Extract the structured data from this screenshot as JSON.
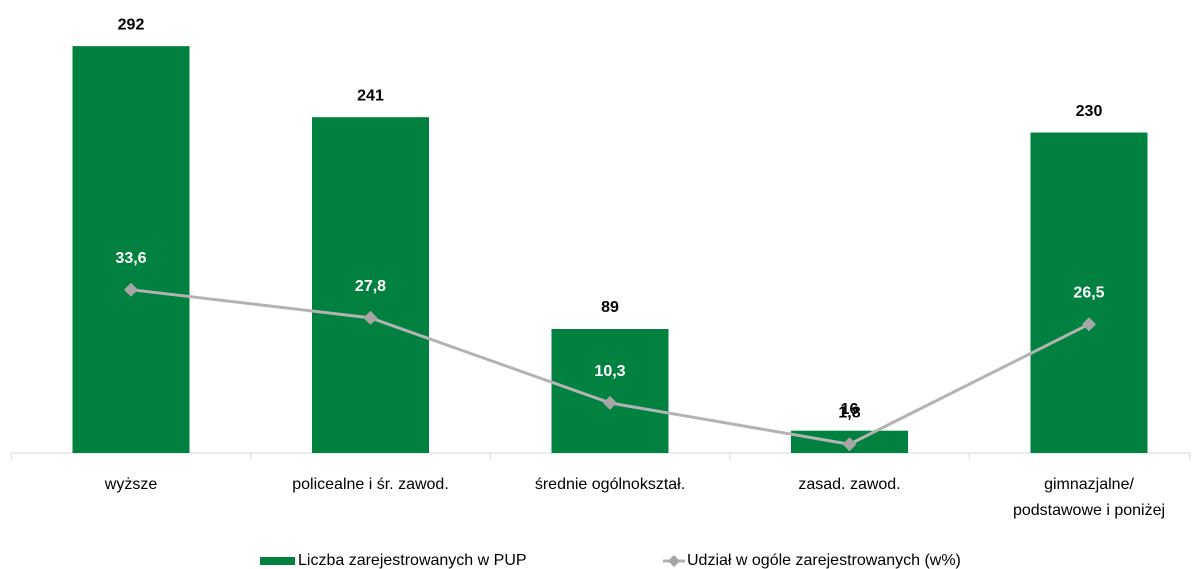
{
  "chart_data": {
    "type": "bar",
    "categories": [
      "wyższe",
      "policealne i śr. zawod.",
      "średnie ogólnokształ.",
      "zasad. zawod.",
      "gimnazjalne/\npodstawowe i poniżej"
    ],
    "series": [
      {
        "name": "Liczba zarejestrowanych w PUP",
        "type": "bar",
        "color": "#00813f",
        "values": [
          292,
          241,
          89,
          16,
          230
        ]
      },
      {
        "name": "Udział w ogóle zarejestrowanych (w%)",
        "type": "line",
        "axis": "y2",
        "color": "#b3b3b3",
        "values": [
          33.6,
          27.8,
          10.3,
          1.8,
          26.5
        ],
        "value_labels": [
          "33,6",
          "27,8",
          "10,3",
          "1,8",
          "26,5"
        ]
      }
    ],
    "ylim": [
      0,
      300
    ],
    "y2lim": [
      0,
      86
    ],
    "legend": "bottom"
  }
}
